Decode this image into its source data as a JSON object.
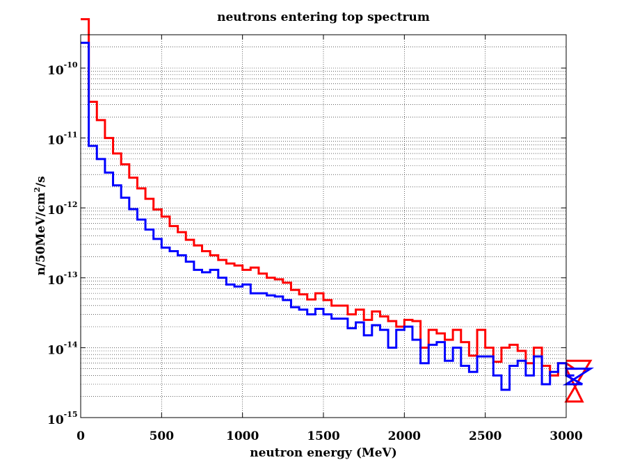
{
  "chart_data": {
    "type": "line",
    "style": "step",
    "title": "neutrons entering top spectrum",
    "xlabel": "neutron energy (MeV)",
    "ylabel": {
      "base": "n/50MeV/cm",
      "superscript": "2",
      "suffix": "/s"
    },
    "xlim": [
      0,
      3000
    ],
    "ylim": [
      1e-15,
      3e-10
    ],
    "yscale": "log",
    "grid": true,
    "x_ticks": [
      "0",
      "500",
      "1000",
      "1500",
      "2000",
      "2500",
      "3000"
    ],
    "x_tick_values": [
      0,
      500,
      1000,
      1500,
      2000,
      2500,
      3000
    ],
    "y_ticks": [
      {
        "base": "10",
        "exp": "-15",
        "value": 1e-15
      },
      {
        "base": "10",
        "exp": "-14",
        "value": 1e-14
      },
      {
        "base": "10",
        "exp": "-13",
        "value": 1e-13
      },
      {
        "base": "10",
        "exp": "-12",
        "value": 1e-12
      },
      {
        "base": "10",
        "exp": "-11",
        "value": 1e-11
      },
      {
        "base": "10",
        "exp": "-10",
        "value": 1e-10
      }
    ],
    "bin_width": 50,
    "bin_edges_start": 0,
    "series": [
      {
        "name": "red",
        "color": "#ff0000",
        "values": [
          5e-10,
          3.3e-11,
          1.8e-11,
          1e-11,
          6e-12,
          4.2e-12,
          2.7e-12,
          1.9e-12,
          1.35e-12,
          9.5e-13,
          7.5e-13,
          5.5e-13,
          4.5e-13,
          3.5e-13,
          2.9e-13,
          2.4e-13,
          2.1e-13,
          1.8e-13,
          1.6e-13,
          1.5e-13,
          1.3e-13,
          1.4e-13,
          1.15e-13,
          1e-13,
          9.5e-14,
          8.5e-14,
          6.7e-14,
          5.8e-14,
          4.9e-14,
          6e-14,
          4.8e-14,
          4e-14,
          4e-14,
          3e-14,
          3.5e-14,
          2.5e-14,
          3.3e-14,
          2.8e-14,
          2.4e-14,
          2e-14,
          2.5e-14,
          2.4e-14,
          1e-14,
          1.8e-14,
          1.6e-14,
          1.3e-14,
          1.8e-14,
          1.2e-14,
          7.7e-15,
          1.8e-14,
          1e-14,
          6.3e-15,
          1e-14,
          1.1e-14,
          9e-15,
          6e-15,
          1e-14,
          5.5e-15,
          4e-15,
          6e-15,
          6e-15,
          5e-15,
          1.7e-15,
          6.5e-15
        ]
      },
      {
        "name": "blue",
        "color": "#0000ff",
        "values": [
          2.3e-10,
          7.7e-12,
          5e-12,
          3.2e-12,
          2.1e-12,
          1.4e-12,
          9.6e-13,
          6.8e-13,
          4.9e-13,
          3.6e-13,
          2.7e-13,
          2.4e-13,
          2.1e-13,
          1.7e-13,
          1.3e-13,
          1.2e-13,
          1.3e-13,
          1e-13,
          8e-14,
          7.5e-14,
          8e-14,
          6e-14,
          6e-14,
          5.6e-14,
          5.4e-14,
          4.8e-14,
          3.8e-14,
          3.5e-14,
          3e-14,
          3.6e-14,
          3e-14,
          2.6e-14,
          2.6e-14,
          1.9e-14,
          2.3e-14,
          1.5e-14,
          2.1e-14,
          1.8e-14,
          1e-14,
          1.8e-14,
          2e-14,
          1.3e-14,
          6e-15,
          1.1e-14,
          1.2e-14,
          6.5e-15,
          1e-14,
          5.5e-15,
          4.5e-15,
          7.5e-15,
          7.5e-15,
          4e-15,
          2.5e-15,
          5.5e-15,
          6.5e-15,
          4e-15,
          7.5e-15,
          3e-15,
          4.5e-15,
          6e-15,
          4e-15,
          4e-15,
          3e-15,
          5e-15
        ]
      }
    ]
  }
}
